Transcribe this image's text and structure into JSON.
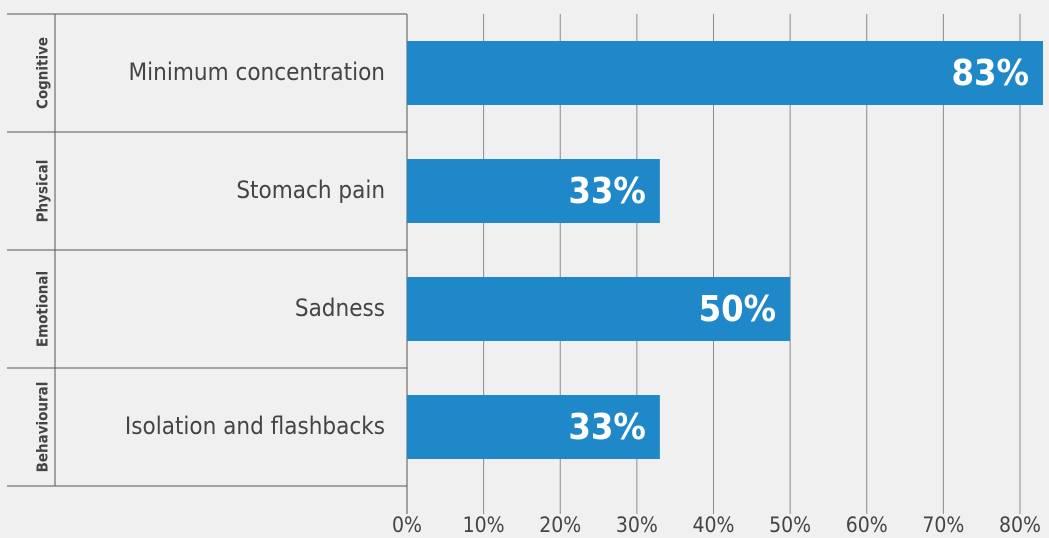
{
  "chart_data": {
    "type": "bar",
    "orientation": "horizontal",
    "groups": [
      "Cognitive",
      "Physical",
      "Emotional",
      "Behavioural"
    ],
    "categories": [
      "Minimum concentration",
      "Stomach pain",
      "Sadness",
      "Isolation and flashbacks"
    ],
    "values": [
      83,
      33,
      50,
      33
    ],
    "value_labels": [
      "83%",
      "33%",
      "50%",
      "33%"
    ],
    "color": "#1e88c8",
    "xlim": [
      0,
      83
    ],
    "xticks": [
      {
        "value": 0,
        "label": "0%"
      },
      {
        "value": 10,
        "label": "10%"
      },
      {
        "value": 20,
        "label": "20%"
      },
      {
        "value": 30,
        "label": "30%"
      },
      {
        "value": 40,
        "label": "40%"
      },
      {
        "value": 50,
        "label": "50%"
      },
      {
        "value": 60,
        "label": "60%"
      },
      {
        "value": 70,
        "label": "70%"
      },
      {
        "value": 80,
        "label": "80%"
      }
    ],
    "grid": true
  }
}
